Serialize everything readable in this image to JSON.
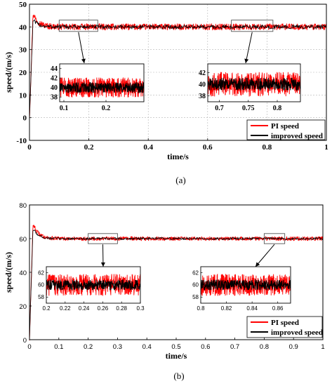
{
  "chart_data": [
    {
      "type": "line",
      "caption": "(a)",
      "xlabel": "time/s",
      "ylabel": "speed/(m/s)",
      "xlim": [
        0,
        1
      ],
      "ylim": [
        -10,
        50
      ],
      "xticks": [
        "0",
        "0.2",
        "0.4",
        "0.6",
        "0.8",
        "1"
      ],
      "yticks": [
        "-10",
        "0",
        "10",
        "20",
        "30",
        "40",
        "50"
      ],
      "grid": true,
      "legend_position": "bottom-right",
      "series": [
        {
          "name": "PI speed",
          "color": "#ff0000",
          "peak": 46,
          "steady": 40,
          "noise": 1.4
        },
        {
          "name": "improved speed",
          "color": "#000000",
          "peak": 43,
          "steady": 40,
          "noise": 0.9
        }
      ],
      "zoom_boxes": [
        {
          "x": [
            0.1,
            0.23
          ],
          "y": [
            38,
            43
          ]
        },
        {
          "x": [
            0.68,
            0.82
          ],
          "y": [
            38,
            43
          ]
        }
      ],
      "insets": [
        {
          "xticks": [
            "0.1",
            "0.2"
          ],
          "yticks": [
            "38",
            "40",
            "42",
            "44"
          ],
          "xlim": [
            0.09,
            0.29
          ],
          "ylim": [
            37,
            45
          ]
        },
        {
          "xticks": [
            "0.7",
            "0.75",
            "0.8"
          ],
          "yticks": [
            "38",
            "40",
            "42"
          ],
          "xlim": [
            0.68,
            0.84
          ],
          "ylim": [
            37,
            43.5
          ]
        }
      ]
    },
    {
      "type": "line",
      "caption": "(b)",
      "xlabel": "time/s",
      "ylabel": "speed/(m/s)",
      "xlim": [
        0,
        1
      ],
      "ylim": [
        0,
        80
      ],
      "xticks": [
        "0",
        "0.1",
        "0.2",
        "0.3",
        "0.4",
        "0.5",
        "0.6",
        "0.7",
        "0.8",
        "0.9",
        "1"
      ],
      "yticks": [
        "0",
        "20",
        "40",
        "60",
        "80"
      ],
      "grid": false,
      "legend_position": "bottom-right",
      "series": [
        {
          "name": "PI speed",
          "color": "#ff0000",
          "peak": 69,
          "steady": 60,
          "noise": 1.2
        },
        {
          "name": "improved speed",
          "color": "#000000",
          "peak": 66,
          "steady": 60,
          "noise": 0.7
        }
      ],
      "zoom_boxes": [
        {
          "x": [
            0.2,
            0.3
          ],
          "y": [
            57,
            63
          ]
        },
        {
          "x": [
            0.8,
            0.87
          ],
          "y": [
            57,
            63
          ]
        }
      ],
      "insets": [
        {
          "xticks": [
            "0.2",
            "0.22",
            "0.24",
            "0.26",
            "0.28",
            "0.3"
          ],
          "yticks": [
            "58",
            "60",
            "62"
          ],
          "xlim": [
            0.2,
            0.3
          ],
          "ylim": [
            57,
            63
          ]
        },
        {
          "xticks": [
            "0.8",
            "0.82",
            "0.84",
            "0.86"
          ],
          "yticks": [
            "58",
            "60",
            "62"
          ],
          "xlim": [
            0.8,
            0.87
          ],
          "ylim": [
            57,
            63
          ]
        }
      ]
    }
  ]
}
